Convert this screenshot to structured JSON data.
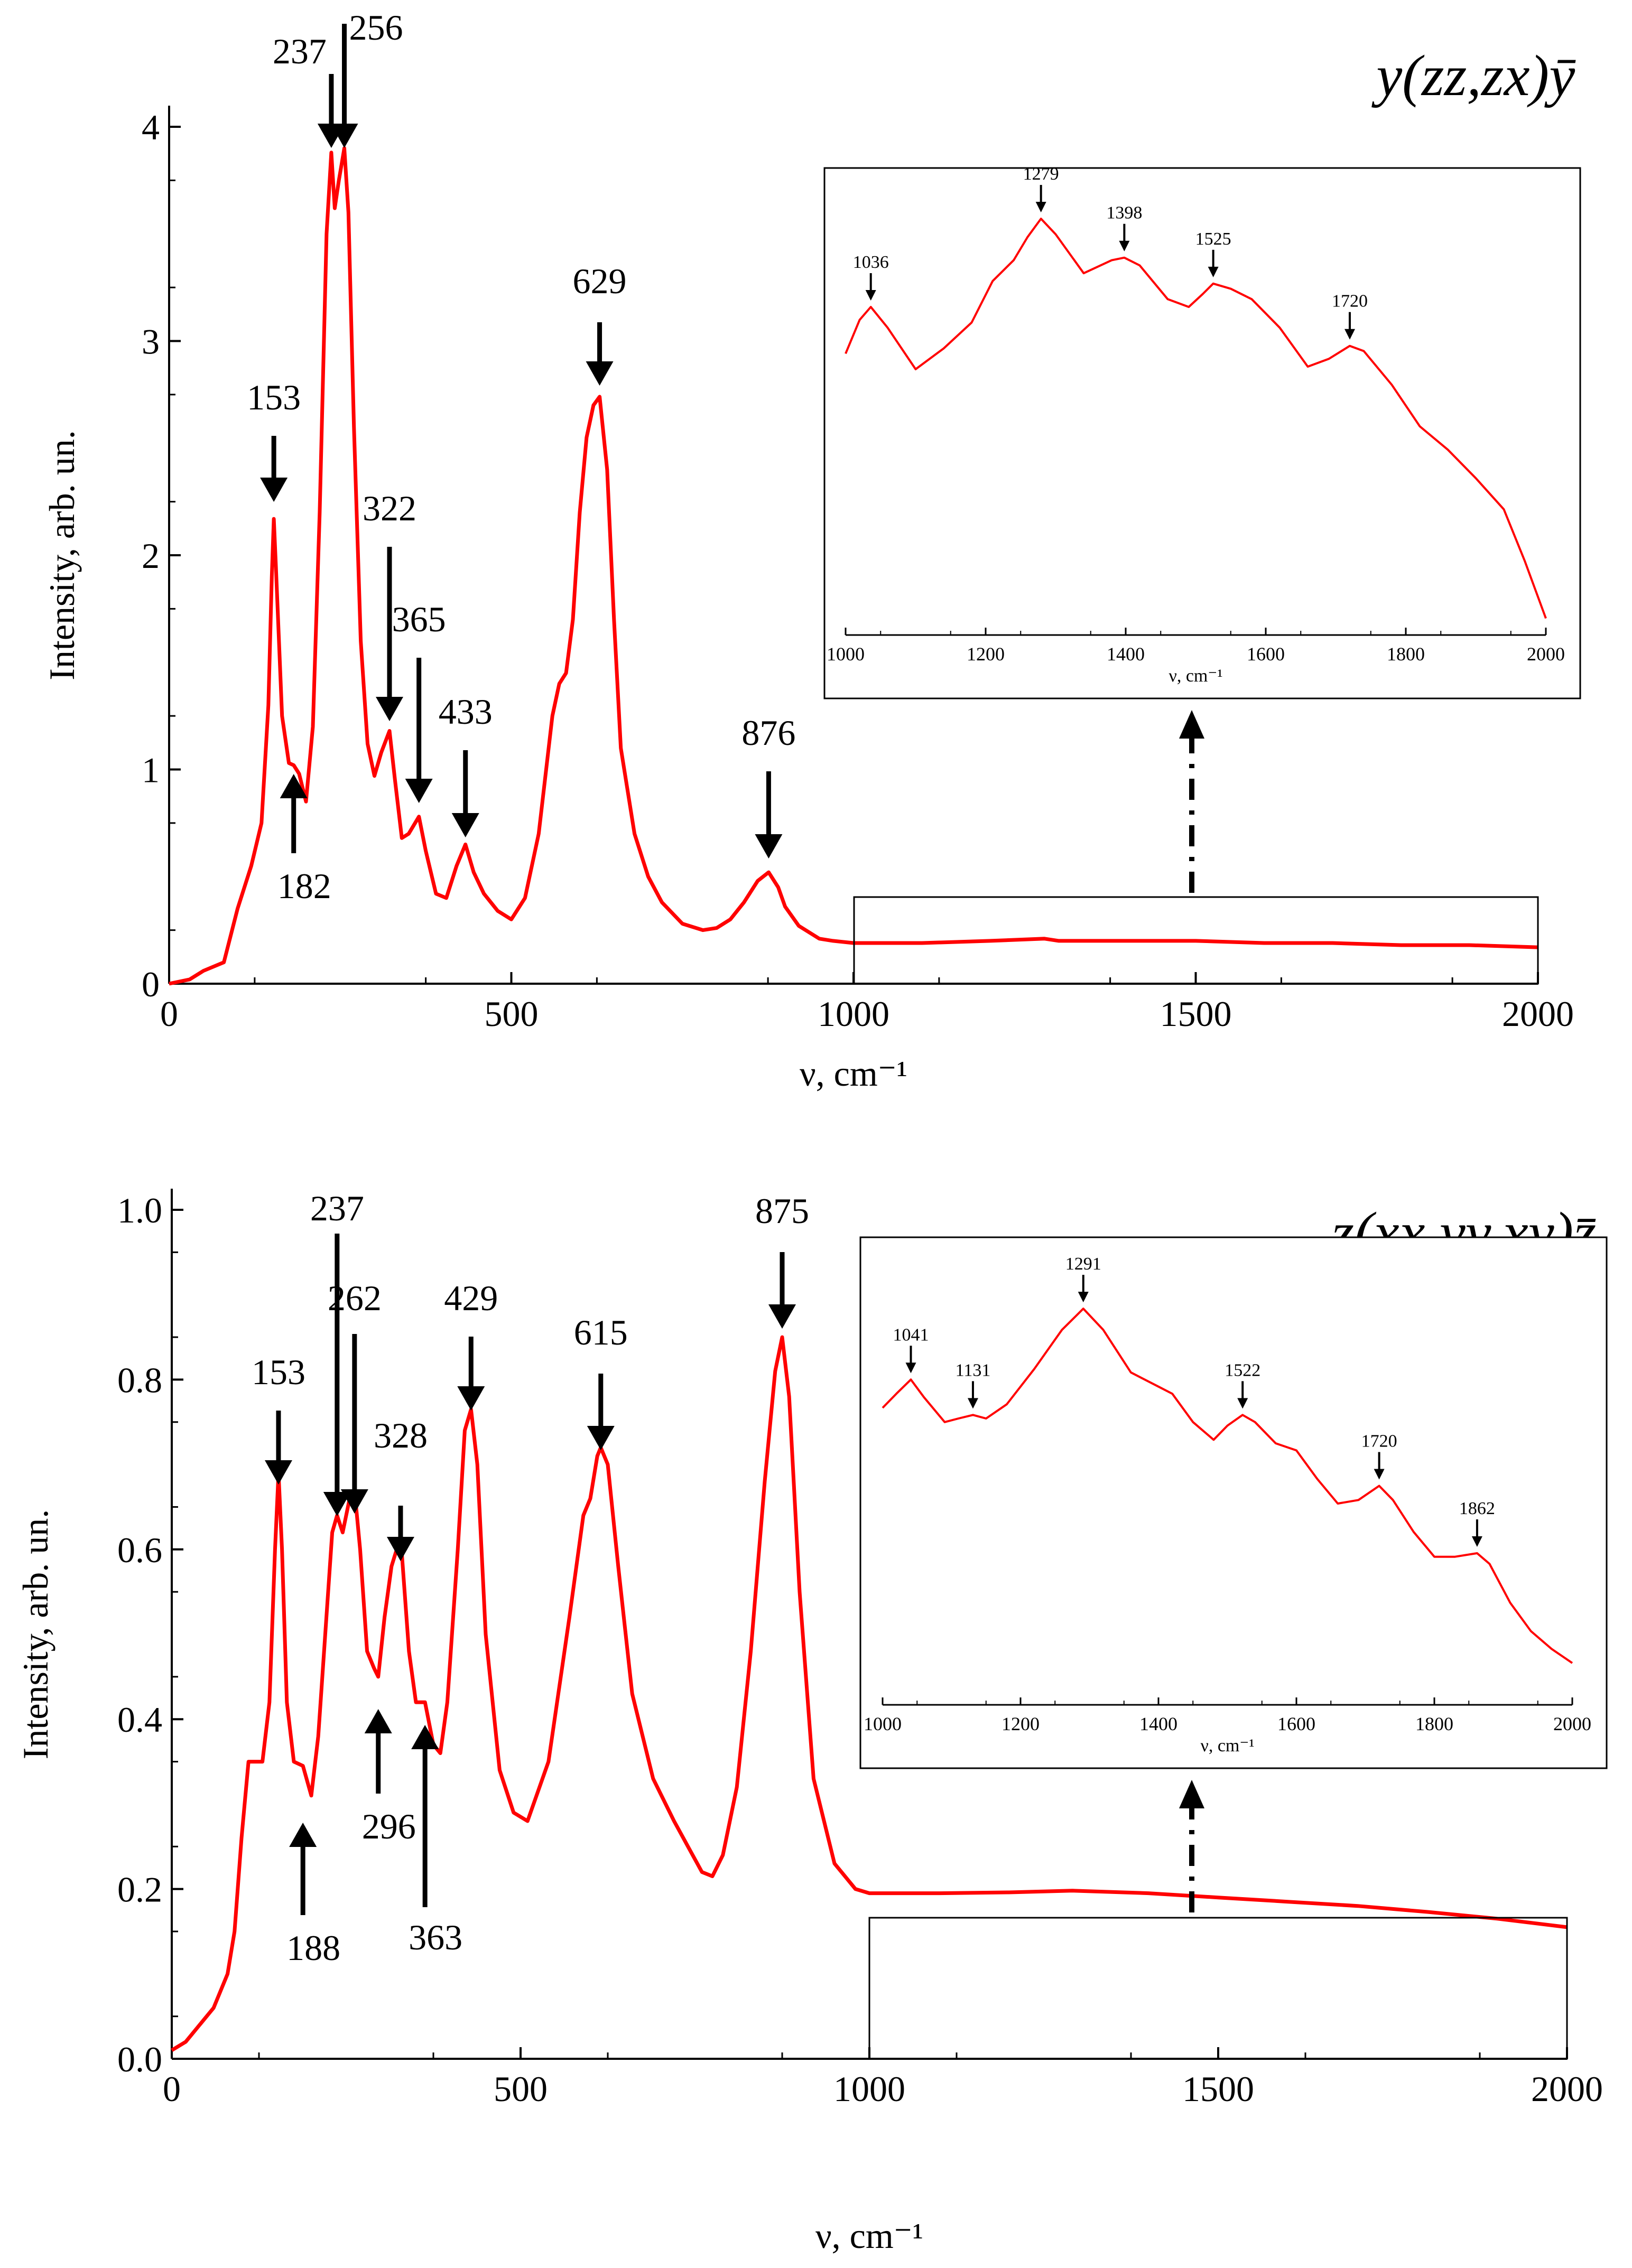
{
  "chart_data": [
    {
      "type": "line",
      "name": "top",
      "title": "y(zz,zx)ȳ",
      "xlabel": "ν, cm⁻¹",
      "ylabel": "Intensity, arb. un.",
      "xlim": [
        0,
        2000
      ],
      "ylim": [
        0,
        4
      ],
      "xticks": [
        "0",
        "500",
        "1000",
        "1500",
        "2000"
      ],
      "yticks": [
        "0",
        "1",
        "2",
        "3",
        "4"
      ],
      "colors": {
        "line": "#ff0000"
      },
      "series": [
        {
          "x": [
            0,
            30,
            50,
            80,
            100,
            120,
            135,
            145,
            150,
            153,
            156,
            165,
            175,
            182,
            190,
            200,
            210,
            220,
            230,
            237,
            242,
            248,
            256,
            262,
            270,
            280,
            290,
            300,
            310,
            322,
            330,
            340,
            350,
            365,
            375,
            390,
            405,
            420,
            433,
            445,
            460,
            480,
            500,
            520,
            540,
            560,
            570,
            580,
            590,
            600,
            610,
            620,
            629,
            640,
            650,
            660,
            680,
            700,
            720,
            750,
            780,
            800,
            820,
            840,
            860,
            876,
            890,
            900,
            920,
            950,
            970,
            1000,
            1100,
            1200,
            1279,
            1300,
            1400,
            1500,
            1600,
            1700,
            1800,
            1900,
            2000
          ],
          "y": [
            0.0,
            0.02,
            0.06,
            0.1,
            0.35,
            0.55,
            0.75,
            1.3,
            1.9,
            2.17,
            1.95,
            1.25,
            1.03,
            1.02,
            0.98,
            0.85,
            1.2,
            2.2,
            3.5,
            3.88,
            3.62,
            3.75,
            3.9,
            3.6,
            2.6,
            1.6,
            1.12,
            0.97,
            1.08,
            1.18,
            0.95,
            0.68,
            0.7,
            0.78,
            0.62,
            0.42,
            0.4,
            0.55,
            0.65,
            0.52,
            0.42,
            0.34,
            0.3,
            0.4,
            0.7,
            1.25,
            1.4,
            1.45,
            1.7,
            2.2,
            2.55,
            2.7,
            2.74,
            2.4,
            1.7,
            1.1,
            0.7,
            0.5,
            0.38,
            0.28,
            0.25,
            0.26,
            0.3,
            0.38,
            0.48,
            0.52,
            0.45,
            0.36,
            0.27,
            0.21,
            0.2,
            0.19,
            0.19,
            0.2,
            0.21,
            0.2,
            0.2,
            0.2,
            0.19,
            0.19,
            0.18,
            0.18,
            0.17
          ]
        }
      ],
      "peaks": [
        {
          "label": "153",
          "x": 153
        },
        {
          "label": "237",
          "x": 237
        },
        {
          "label": "256",
          "x": 256
        },
        {
          "label": "322",
          "x": 322
        },
        {
          "label": "365",
          "x": 365
        },
        {
          "label": "433",
          "x": 433
        },
        {
          "label": "629",
          "x": 629
        },
        {
          "label": "876",
          "x": 876
        },
        {
          "label": "182",
          "x": 182
        }
      ],
      "inset": {
        "xlabel": "ν, cm⁻¹",
        "xlim": [
          1000,
          2000
        ],
        "xticks": [
          "1000",
          "1200",
          "1400",
          "1600",
          "1800",
          "2000"
        ],
        "x": [
          1000,
          1020,
          1036,
          1060,
          1100,
          1140,
          1180,
          1210,
          1240,
          1260,
          1279,
          1300,
          1340,
          1380,
          1398,
          1420,
          1460,
          1490,
          1510,
          1525,
          1550,
          1580,
          1620,
          1660,
          1690,
          1720,
          1740,
          1780,
          1820,
          1860,
          1900,
          1940,
          1970,
          2000
        ],
        "y": [
          0.72,
          0.85,
          0.9,
          0.82,
          0.66,
          0.74,
          0.84,
          1.0,
          1.08,
          1.17,
          1.24,
          1.18,
          1.03,
          1.08,
          1.09,
          1.06,
          0.93,
          0.9,
          0.95,
          0.99,
          0.97,
          0.93,
          0.82,
          0.67,
          0.7,
          0.75,
          0.73,
          0.6,
          0.44,
          0.35,
          0.24,
          0.12,
          -0.08,
          -0.3
        ],
        "peaks": [
          {
            "label": "1036",
            "x": 1036
          },
          {
            "label": "1279",
            "x": 1279
          },
          {
            "label": "1398",
            "x": 1398
          },
          {
            "label": "1525",
            "x": 1525
          },
          {
            "label": "1720",
            "x": 1720
          }
        ]
      }
    },
    {
      "type": "line",
      "name": "bottom",
      "title": "z(xx,yy,xy)z̄",
      "xlabel": "ν, cm⁻¹",
      "ylabel": "Intensity, arb. un.",
      "xlim": [
        0,
        2000
      ],
      "ylim": [
        0,
        1.0
      ],
      "xticks": [
        "0",
        "500",
        "1000",
        "1500",
        "2000"
      ],
      "yticks": [
        "0.0",
        "0.2",
        "0.4",
        "0.6",
        "0.8",
        "1.0"
      ],
      "colors": {
        "line": "#ff0000"
      },
      "series": [
        {
          "x": [
            0,
            20,
            40,
            60,
            70,
            80,
            90,
            100,
            110,
            120,
            130,
            140,
            148,
            153,
            158,
            165,
            175,
            188,
            200,
            210,
            220,
            230,
            237,
            245,
            255,
            262,
            270,
            280,
            290,
            296,
            305,
            315,
            328,
            340,
            350,
            363,
            375,
            385,
            395,
            410,
            420,
            429,
            438,
            450,
            470,
            490,
            510,
            540,
            570,
            590,
            600,
            610,
            615,
            625,
            640,
            660,
            690,
            720,
            740,
            760,
            775,
            790,
            810,
            830,
            850,
            865,
            875,
            885,
            900,
            920,
            950,
            980,
            1000,
            1100,
            1200,
            1291,
            1400,
            1500,
            1600,
            1700,
            1800,
            1900,
            2000
          ],
          "y": [
            0.01,
            0.02,
            0.04,
            0.06,
            0.08,
            0.1,
            0.15,
            0.26,
            0.35,
            0.35,
            0.35,
            0.42,
            0.6,
            0.69,
            0.6,
            0.42,
            0.35,
            0.345,
            0.31,
            0.38,
            0.5,
            0.62,
            0.64,
            0.62,
            0.66,
            0.67,
            0.6,
            0.48,
            0.46,
            0.45,
            0.52,
            0.58,
            0.615,
            0.48,
            0.42,
            0.42,
            0.37,
            0.36,
            0.42,
            0.6,
            0.74,
            0.765,
            0.7,
            0.5,
            0.34,
            0.29,
            0.28,
            0.35,
            0.52,
            0.64,
            0.66,
            0.71,
            0.72,
            0.7,
            0.58,
            0.43,
            0.33,
            0.28,
            0.25,
            0.22,
            0.215,
            0.24,
            0.32,
            0.48,
            0.68,
            0.81,
            0.85,
            0.78,
            0.55,
            0.33,
            0.23,
            0.2,
            0.195,
            0.195,
            0.196,
            0.198,
            0.195,
            0.19,
            0.185,
            0.18,
            0.173,
            0.165,
            0.155
          ]
        }
      ],
      "peaks": [
        {
          "label": "153",
          "x": 153
        },
        {
          "label": "237",
          "x": 237
        },
        {
          "label": "262",
          "x": 262
        },
        {
          "label": "328",
          "x": 328
        },
        {
          "label": "429",
          "x": 429
        },
        {
          "label": "615",
          "x": 615
        },
        {
          "label": "875",
          "x": 875
        },
        {
          "label": "188",
          "x": 188
        },
        {
          "label": "296",
          "x": 296
        },
        {
          "label": "363",
          "x": 363
        }
      ],
      "inset": {
        "xlabel": "ν, cm⁻¹",
        "xlim": [
          1000,
          2000
        ],
        "xticks": [
          "1000",
          "1200",
          "1400",
          "1600",
          "1800",
          "2000"
        ],
        "x": [
          1000,
          1020,
          1041,
          1060,
          1090,
          1110,
          1131,
          1150,
          1180,
          1220,
          1260,
          1291,
          1320,
          1360,
          1400,
          1420,
          1450,
          1480,
          1500,
          1522,
          1540,
          1570,
          1600,
          1630,
          1660,
          1690,
          1720,
          1740,
          1770,
          1800,
          1830,
          1862,
          1880,
          1910,
          1940,
          1970,
          2000
        ],
        "y": [
          0.82,
          0.86,
          0.9,
          0.85,
          0.78,
          0.79,
          0.8,
          0.79,
          0.83,
          0.93,
          1.04,
          1.1,
          1.04,
          0.92,
          0.88,
          0.86,
          0.78,
          0.73,
          0.77,
          0.8,
          0.78,
          0.72,
          0.7,
          0.62,
          0.55,
          0.56,
          0.6,
          0.56,
          0.47,
          0.4,
          0.4,
          0.41,
          0.38,
          0.27,
          0.19,
          0.14,
          0.1
        ],
        "peaks": [
          {
            "label": "1041",
            "x": 1041
          },
          {
            "label": "1131",
            "x": 1131
          },
          {
            "label": "1291",
            "x": 1291
          },
          {
            "label": "1522",
            "x": 1522
          },
          {
            "label": "1720",
            "x": 1720
          },
          {
            "label": "1862",
            "x": 1862
          }
        ]
      }
    }
  ]
}
